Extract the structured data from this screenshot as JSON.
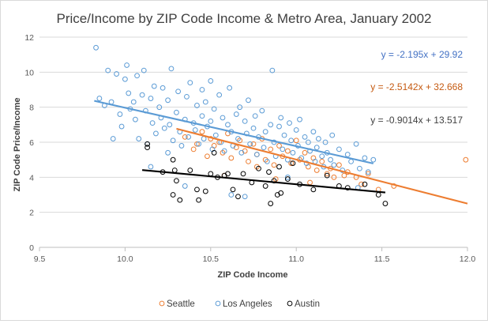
{
  "chart_data": {
    "type": "scatter",
    "title": "Price/Income by ZIP Code Income & Metro Area, January 2002",
    "xlabel": "ZIP Code Income",
    "ylabel": "ZIP Code Price/Income",
    "xlim": [
      9.5,
      12.0
    ],
    "ylim": [
      0,
      12
    ],
    "xticks": [
      "9.5",
      "10.0",
      "10.5",
      "11.0",
      "11.5",
      "12.0"
    ],
    "yticks": [
      "0",
      "2",
      "4",
      "6",
      "8",
      "10",
      "12"
    ],
    "grid": "horizontal",
    "legend_position": "bottom",
    "marker": "hollow-circle",
    "series": [
      {
        "name": "Seattle",
        "color": "#ED7D31",
        "trendline": {
          "equation": "y = -2.5142x + 32.668",
          "slope": -2.5142,
          "intercept": 32.668,
          "x_range": [
            10.3,
            12.0
          ]
        },
        "points": [
          [
            10.35,
            6.3
          ],
          [
            10.4,
            5.6
          ],
          [
            10.42,
            5.9
          ],
          [
            10.45,
            6.6
          ],
          [
            10.48,
            5.2
          ],
          [
            10.5,
            6.2
          ],
          [
            10.52,
            5.8
          ],
          [
            10.55,
            6.0
          ],
          [
            10.57,
            5.4
          ],
          [
            10.6,
            6.5
          ],
          [
            10.62,
            5.1
          ],
          [
            10.65,
            5.7
          ],
          [
            10.67,
            6.1
          ],
          [
            10.7,
            5.5
          ],
          [
            10.72,
            4.9
          ],
          [
            10.75,
            5.9
          ],
          [
            10.77,
            5.3
          ],
          [
            10.8,
            6.2
          ],
          [
            10.82,
            5.0
          ],
          [
            10.85,
            5.6
          ],
          [
            10.87,
            4.7
          ],
          [
            10.9,
            5.8
          ],
          [
            10.92,
            5.2
          ],
          [
            10.95,
            5.5
          ],
          [
            10.97,
            4.8
          ],
          [
            11.0,
            6.1
          ],
          [
            11.02,
            5.0
          ],
          [
            11.05,
            5.4
          ],
          [
            11.07,
            4.6
          ],
          [
            11.1,
            5.1
          ],
          [
            11.12,
            4.4
          ],
          [
            11.15,
            4.9
          ],
          [
            11.18,
            4.2
          ],
          [
            11.2,
            4.5
          ],
          [
            11.22,
            4.0
          ],
          [
            11.25,
            4.7
          ],
          [
            11.28,
            4.1
          ],
          [
            11.3,
            4.3
          ],
          [
            11.35,
            4.0
          ],
          [
            11.38,
            3.6
          ],
          [
            11.42,
            4.2
          ],
          [
            11.48,
            3.3
          ],
          [
            11.57,
            3.5
          ],
          [
            11.99,
            5.0
          ],
          [
            10.58,
            4.1
          ],
          [
            10.77,
            4.6
          ],
          [
            10.88,
            3.9
          ],
          [
            11.08,
            3.7
          ]
        ]
      },
      {
        "name": "Los Angeles",
        "color": "#5B9BD5",
        "trendline": {
          "equation": "y = -2.195x + 29.92",
          "slope": -2.195,
          "intercept": 29.92,
          "x_range": [
            9.82,
            11.45
          ]
        },
        "points": [
          [
            9.83,
            11.4
          ],
          [
            9.85,
            8.5
          ],
          [
            9.88,
            8.1
          ],
          [
            9.9,
            10.1
          ],
          [
            9.92,
            8.3
          ],
          [
            9.93,
            6.2
          ],
          [
            9.95,
            9.9
          ],
          [
            9.97,
            7.6
          ],
          [
            9.98,
            6.9
          ],
          [
            10.0,
            9.6
          ],
          [
            10.01,
            10.4
          ],
          [
            10.02,
            8.8
          ],
          [
            10.03,
            7.9
          ],
          [
            10.05,
            8.3
          ],
          [
            10.06,
            7.3
          ],
          [
            10.07,
            9.8
          ],
          [
            10.08,
            6.2
          ],
          [
            10.1,
            8.7
          ],
          [
            10.11,
            10.1
          ],
          [
            10.12,
            7.8
          ],
          [
            10.13,
            5.9
          ],
          [
            10.15,
            8.5
          ],
          [
            10.16,
            7.1
          ],
          [
            10.17,
            9.2
          ],
          [
            10.18,
            6.5
          ],
          [
            10.2,
            8.0
          ],
          [
            10.21,
            7.4
          ],
          [
            10.22,
            9.1
          ],
          [
            10.23,
            6.8
          ],
          [
            10.25,
            8.4
          ],
          [
            10.26,
            7.0
          ],
          [
            10.27,
            10.2
          ],
          [
            10.28,
            6.1
          ],
          [
            10.3,
            7.7
          ],
          [
            10.31,
            8.9
          ],
          [
            10.32,
            6.6
          ],
          [
            10.33,
            5.8
          ],
          [
            10.35,
            7.3
          ],
          [
            10.36,
            8.6
          ],
          [
            10.37,
            6.3
          ],
          [
            10.38,
            9.4
          ],
          [
            10.4,
            7.1
          ],
          [
            10.41,
            6.7
          ],
          [
            10.42,
            8.1
          ],
          [
            10.43,
            5.9
          ],
          [
            10.45,
            7.5
          ],
          [
            10.46,
            6.2
          ],
          [
            10.47,
            8.3
          ],
          [
            10.48,
            6.9
          ],
          [
            10.5,
            7.2
          ],
          [
            10.51,
            5.6
          ],
          [
            10.52,
            7.9
          ],
          [
            10.53,
            6.4
          ],
          [
            10.55,
            8.7
          ],
          [
            10.56,
            6.0
          ],
          [
            10.57,
            7.4
          ],
          [
            10.58,
            5.5
          ],
          [
            10.6,
            7.0
          ],
          [
            10.61,
            9.1
          ],
          [
            10.62,
            6.6
          ],
          [
            10.63,
            5.8
          ],
          [
            10.65,
            7.6
          ],
          [
            10.66,
            6.2
          ],
          [
            10.67,
            8.0
          ],
          [
            10.68,
            5.4
          ],
          [
            10.7,
            7.2
          ],
          [
            10.71,
            6.5
          ],
          [
            10.72,
            8.4
          ],
          [
            10.73,
            5.9
          ],
          [
            10.75,
            6.8
          ],
          [
            10.76,
            7.5
          ],
          [
            10.77,
            5.3
          ],
          [
            10.78,
            6.3
          ],
          [
            10.8,
            7.8
          ],
          [
            10.81,
            5.7
          ],
          [
            10.82,
            6.6
          ],
          [
            10.83,
            4.9
          ],
          [
            10.85,
            7.0
          ],
          [
            10.86,
            10.1
          ],
          [
            10.87,
            6.0
          ],
          [
            10.88,
            5.2
          ],
          [
            10.9,
            6.9
          ],
          [
            10.91,
            7.4
          ],
          [
            10.92,
            5.6
          ],
          [
            10.93,
            6.4
          ],
          [
            10.95,
            5.0
          ],
          [
            10.96,
            7.1
          ],
          [
            10.97,
            6.1
          ],
          [
            10.98,
            5.4
          ],
          [
            11.0,
            6.7
          ],
          [
            11.01,
            5.8
          ],
          [
            11.02,
            7.3
          ],
          [
            11.03,
            5.1
          ],
          [
            11.05,
            6.3
          ],
          [
            11.06,
            4.8
          ],
          [
            11.07,
            6.0
          ],
          [
            11.08,
            5.5
          ],
          [
            11.1,
            6.6
          ],
          [
            11.11,
            4.9
          ],
          [
            11.12,
            5.7
          ],
          [
            11.13,
            6.2
          ],
          [
            11.15,
            5.2
          ],
          [
            11.16,
            4.6
          ],
          [
            11.17,
            6.0
          ],
          [
            11.18,
            5.4
          ],
          [
            11.2,
            5.0
          ],
          [
            11.21,
            6.4
          ],
          [
            11.22,
            4.7
          ],
          [
            11.25,
            5.6
          ],
          [
            11.27,
            4.4
          ],
          [
            11.3,
            5.3
          ],
          [
            11.32,
            4.9
          ],
          [
            11.35,
            5.9
          ],
          [
            11.37,
            4.5
          ],
          [
            11.4,
            5.1
          ],
          [
            11.42,
            4.3
          ],
          [
            11.45,
            5.0
          ],
          [
            10.35,
            3.5
          ],
          [
            10.62,
            3.0
          ],
          [
            10.7,
            2.9
          ],
          [
            10.95,
            4.0
          ],
          [
            11.36,
            3.4
          ],
          [
            10.45,
            9.0
          ],
          [
            10.5,
            9.5
          ],
          [
            10.25,
            5.4
          ],
          [
            10.15,
            4.6
          ]
        ]
      },
      {
        "name": "Austin",
        "color": "#000000",
        "trendline": {
          "equation": "y = -0.9014x + 13.517",
          "slope": -0.9014,
          "intercept": 13.517,
          "x_range": [
            10.1,
            11.52
          ]
        },
        "points": [
          [
            10.13,
            5.9
          ],
          [
            10.13,
            5.7
          ],
          [
            10.22,
            4.3
          ],
          [
            10.28,
            5.0
          ],
          [
            10.29,
            4.4
          ],
          [
            10.3,
            3.8
          ],
          [
            10.32,
            2.7
          ],
          [
            10.38,
            4.4
          ],
          [
            10.42,
            3.3
          ],
          [
            10.43,
            2.7
          ],
          [
            10.47,
            3.2
          ],
          [
            10.5,
            4.2
          ],
          [
            10.52,
            5.4
          ],
          [
            10.54,
            4.0
          ],
          [
            10.58,
            4.1
          ],
          [
            10.63,
            3.3
          ],
          [
            10.66,
            2.9
          ],
          [
            10.69,
            4.2
          ],
          [
            10.74,
            3.7
          ],
          [
            10.78,
            4.5
          ],
          [
            10.82,
            3.5
          ],
          [
            10.84,
            4.3
          ],
          [
            10.85,
            2.5
          ],
          [
            10.87,
            3.8
          ],
          [
            10.89,
            3.0
          ],
          [
            10.9,
            4.6
          ],
          [
            10.91,
            3.1
          ],
          [
            10.95,
            3.9
          ],
          [
            10.98,
            4.8
          ],
          [
            11.02,
            3.6
          ],
          [
            11.1,
            3.3
          ],
          [
            11.18,
            4.1
          ],
          [
            11.25,
            3.5
          ],
          [
            11.3,
            3.4
          ],
          [
            11.4,
            3.6
          ],
          [
            11.48,
            3.0
          ],
          [
            11.52,
            2.5
          ],
          [
            10.28,
            3.0
          ],
          [
            10.6,
            4.2
          ]
        ]
      }
    ]
  }
}
